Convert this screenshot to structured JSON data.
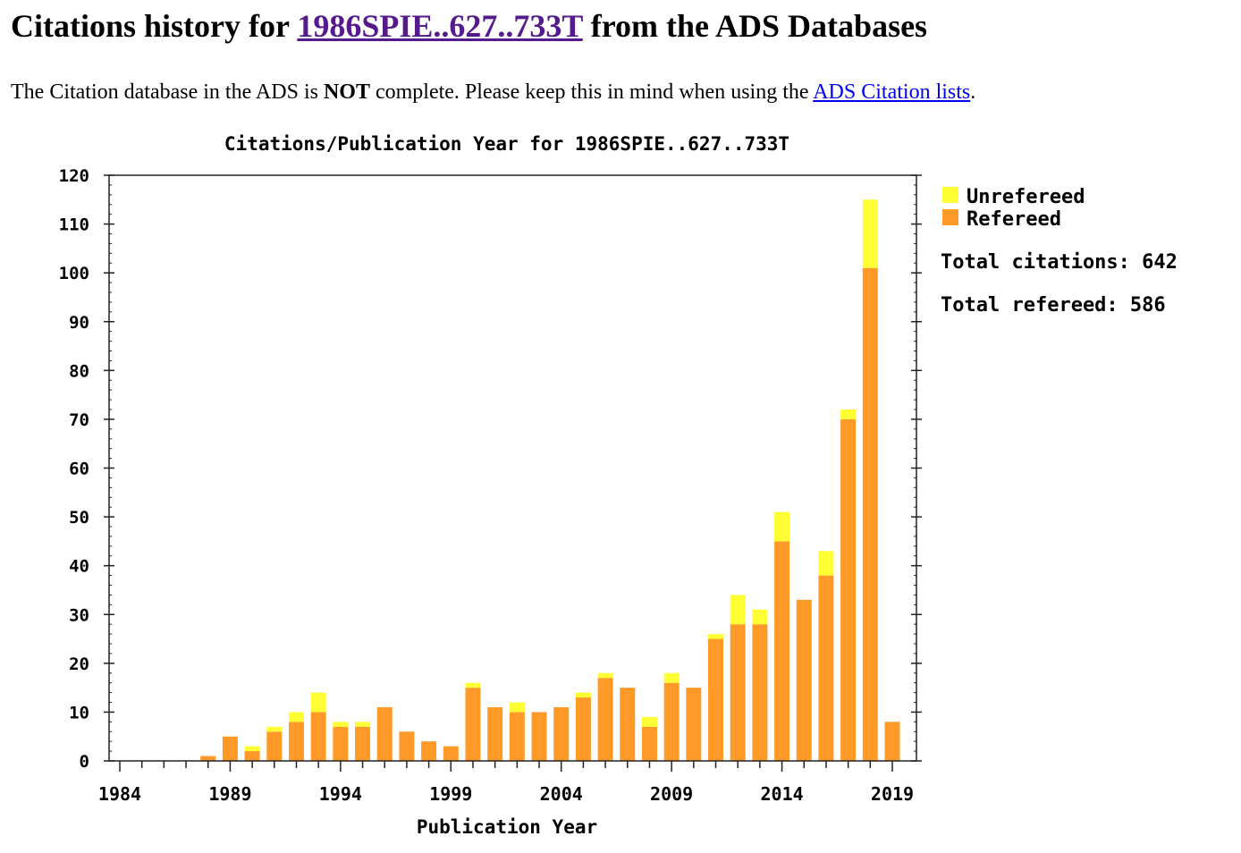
{
  "header": {
    "title_prefix": "Citations history for ",
    "bibcode": "1986SPIE..627..733T",
    "title_suffix": " from the ADS Databases"
  },
  "note": {
    "text_before": "The Citation database in the ADS is ",
    "bold": "NOT",
    "text_middle": " complete. Please keep this in mind when using the ",
    "link": "ADS Citation lists",
    "text_after": "."
  },
  "chart_data": {
    "type": "bar",
    "stacked": true,
    "title": "Citations/Publication Year for 1986SPIE..627..733T",
    "xlabel": "Publication Year",
    "ylabel": "",
    "xlim": [
      1984,
      2019
    ],
    "ylim": [
      0,
      120
    ],
    "xticks": [
      1984,
      1989,
      1994,
      1999,
      2004,
      2009,
      2014,
      2019
    ],
    "yticks": [
      0,
      10,
      20,
      30,
      40,
      50,
      60,
      70,
      80,
      90,
      100,
      110,
      120
    ],
    "legend_position": "right",
    "x": [
      1988,
      1989,
      1990,
      1991,
      1992,
      1993,
      1994,
      1995,
      1996,
      1997,
      1998,
      1999,
      2000,
      2001,
      2002,
      2003,
      2004,
      2005,
      2006,
      2007,
      2008,
      2009,
      2010,
      2011,
      2012,
      2013,
      2014,
      2015,
      2016,
      2017,
      2018,
      2019
    ],
    "series": [
      {
        "name": "Refereed",
        "color": "#ff9a28",
        "values": [
          1,
          5,
          2,
          6,
          8,
          10,
          7,
          7,
          11,
          6,
          4,
          3,
          15,
          11,
          10,
          10,
          11,
          13,
          17,
          15,
          7,
          16,
          15,
          25,
          28,
          28,
          45,
          33,
          38,
          70,
          101,
          8
        ]
      },
      {
        "name": "Unrefereed",
        "color": "#ffff33",
        "values": [
          0,
          0,
          1,
          1,
          2,
          4,
          1,
          1,
          0,
          0,
          0,
          0,
          1,
          0,
          2,
          0,
          0,
          1,
          1,
          0,
          2,
          2,
          0,
          1,
          6,
          3,
          6,
          0,
          5,
          2,
          14,
          0
        ]
      }
    ],
    "annotations": [
      "Total citations: 642",
      "Total refereed: 586"
    ]
  }
}
